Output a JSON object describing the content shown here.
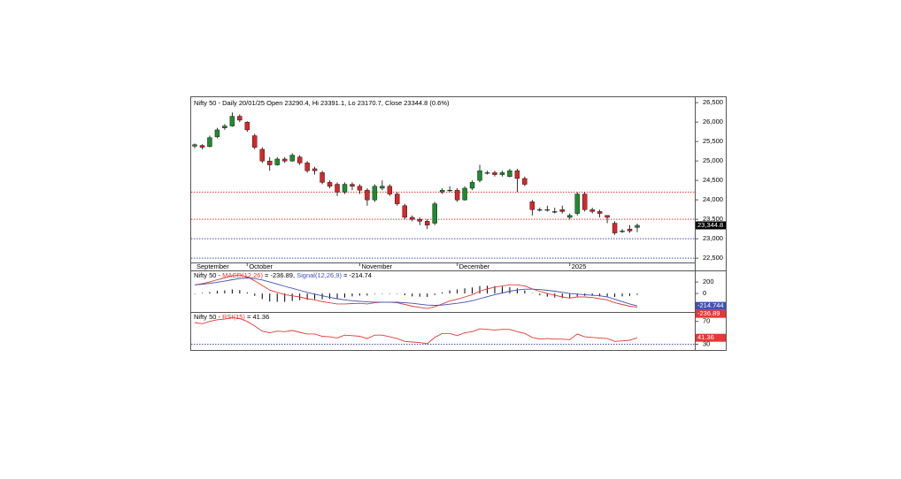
{
  "chart_data": [
    {
      "type": "candlestick",
      "title": "Nifty 50 - Daily 20/01/25 Open 23290.4, Hi 23391.1, Lo 23170.7, Close 23344.8 (0.6%)",
      "categories": [
        "September",
        null,
        null,
        null,
        null,
        null,
        null,
        "October",
        null,
        null,
        null,
        null,
        null,
        null,
        null,
        null,
        null,
        null,
        null,
        null,
        null,
        null,
        "November",
        null,
        null,
        null,
        null,
        null,
        null,
        null,
        null,
        null,
        null,
        null,
        null,
        "December",
        null,
        null,
        null,
        null,
        null,
        null,
        null,
        null,
        null,
        null,
        null,
        null,
        null,
        null,
        "2025",
        null,
        null,
        null,
        null,
        null,
        null,
        null,
        null,
        null
      ],
      "open": [
        25380,
        25400,
        25370,
        25620,
        25850,
        25900,
        26150,
        26000,
        25650,
        25300,
        25000,
        24900,
        25050,
        25000,
        25100,
        24950,
        24800,
        24700,
        24450,
        24400,
        24200,
        24400,
        24350,
        24250,
        24000,
        24300,
        24350,
        24150,
        23850,
        23550,
        23500,
        23450,
        23400,
        24200,
        24250,
        24250,
        24000,
        24300,
        24500,
        24700,
        24700,
        24650,
        24600,
        24750,
        24550,
        23950,
        23750,
        23750,
        23700,
        23750,
        23550,
        23650,
        24150,
        23750,
        23700,
        23600,
        23400,
        23200,
        23250,
        23290.4
      ],
      "high": [
        25450,
        25430,
        25650,
        25850,
        25950,
        26250,
        26200,
        26020,
        25700,
        25350,
        25100,
        25100,
        25100,
        25200,
        25150,
        25000,
        24850,
        24750,
        24500,
        24450,
        24450,
        24450,
        24400,
        24300,
        24400,
        24500,
        24400,
        24200,
        23900,
        23600,
        23550,
        23500,
        23950,
        24300,
        24350,
        24300,
        24350,
        24500,
        24900,
        24750,
        24750,
        24750,
        24800,
        24800,
        24600,
        24000,
        23800,
        23850,
        23800,
        23850,
        23650,
        24200,
        24200,
        23800,
        23750,
        23600,
        23450,
        23250,
        23350,
        23391.1
      ],
      "low": [
        25330,
        25300,
        25350,
        25590,
        25800,
        25880,
        26000,
        25750,
        25300,
        24950,
        24750,
        24880,
        24950,
        24980,
        24900,
        24700,
        24650,
        24400,
        24300,
        24100,
        24150,
        24250,
        24150,
        23850,
        23950,
        24250,
        24100,
        23850,
        23500,
        23450,
        23350,
        23250,
        23350,
        24150,
        24200,
        23950,
        23980,
        24250,
        24450,
        24650,
        24600,
        24600,
        24580,
        24200,
        24350,
        23600,
        23700,
        23700,
        23650,
        23650,
        23500,
        23600,
        23700,
        23650,
        23550,
        23400,
        23100,
        23150,
        23150,
        23170.7
      ],
      "close": [
        25420,
        25350,
        25600,
        25800,
        25900,
        26150,
        26050,
        25800,
        25350,
        25000,
        24900,
        25050,
        25000,
        25150,
        24950,
        24750,
        24750,
        24450,
        24350,
        24200,
        24400,
        24350,
        24250,
        24000,
        24350,
        24350,
        24150,
        23900,
        23550,
        23500,
        23450,
        23350,
        23900,
        24250,
        24250,
        24000,
        24300,
        24450,
        24750,
        24700,
        24650,
        24700,
        24750,
        24550,
        24400,
        23750,
        23750,
        23750,
        23700,
        23700,
        23600,
        24150,
        23750,
        23700,
        23650,
        23550,
        23150,
        23200,
        23200,
        23344.8
      ],
      "close_label": "23,344.8",
      "up_color": "#1e8c2e",
      "down_color": "#d62828",
      "hlines": [
        24200,
        23500,
        23000,
        22500
      ],
      "hline_colors": [
        "#e53935",
        "#e53935",
        "#3f51b5",
        "#3f51b5"
      ],
      "ylim": [
        22390,
        26640
      ],
      "yticks": [
        {
          "value": 26500,
          "label": "26,500"
        },
        {
          "value": 26000,
          "label": "26,000"
        },
        {
          "value": 25500,
          "label": "25,500"
        },
        {
          "value": 25000,
          "label": "25,000"
        },
        {
          "value": 24500,
          "label": "24,500"
        },
        {
          "value": 24000,
          "label": "24,000"
        },
        {
          "value": 23500,
          "label": "23,500"
        },
        {
          "value": 23000,
          "label": "23,000"
        },
        {
          "value": 22500,
          "label": "22,500"
        }
      ]
    },
    {
      "type": "macd",
      "title_parts": [
        {
          "text": "Nifty 50 - "
        },
        {
          "text": "MACD(12,26)",
          "color": "#e53935"
        },
        {
          "text": " = -236.89, "
        },
        {
          "text": "Signal(12,26,9)",
          "color": "#3f51b5"
        },
        {
          "text": " = -214.74"
        }
      ],
      "series": [
        {
          "name": "MACD",
          "color": "#e53935",
          "values": [
            150,
            170,
            200,
            240,
            270,
            310,
            320,
            290,
            220,
            140,
            60,
            20,
            -20,
            -40,
            -60,
            -90,
            -110,
            -140,
            -160,
            -180,
            -180,
            -175,
            -170,
            -180,
            -160,
            -150,
            -150,
            -160,
            -190,
            -220,
            -240,
            -260,
            -230,
            -180,
            -130,
            -100,
            -60,
            -20,
            40,
            80,
            110,
            130,
            150,
            150,
            130,
            80,
            40,
            0,
            -30,
            -60,
            -80,
            -60,
            -60,
            -70,
            -90,
            -110,
            -160,
            -190,
            -220,
            -236.89
          ]
        },
        {
          "name": "Signal",
          "color": "#3f51b5",
          "values": [
            150,
            160,
            175,
            195,
            215,
            240,
            260,
            270,
            260,
            235,
            200,
            165,
            125,
            90,
            55,
            20,
            -10,
            -40,
            -65,
            -90,
            -110,
            -125,
            -135,
            -145,
            -150,
            -150,
            -150,
            -152,
            -160,
            -170,
            -185,
            -200,
            -205,
            -200,
            -185,
            -170,
            -150,
            -125,
            -90,
            -55,
            -20,
            10,
            40,
            60,
            75,
            75,
            70,
            55,
            40,
            20,
            0,
            -10,
            -20,
            -30,
            -40,
            -60,
            -100,
            -140,
            -180,
            -214.744
          ]
        }
      ],
      "histogram": [
        0,
        10,
        25,
        45,
        55,
        70,
        60,
        20,
        -40,
        -95,
        -140,
        -145,
        -145,
        -130,
        -115,
        -110,
        -100,
        -100,
        -95,
        -90,
        -70,
        -50,
        -35,
        -35,
        -10,
        0,
        0,
        -8,
        -30,
        -50,
        -55,
        -60,
        -25,
        20,
        55,
        70,
        90,
        105,
        130,
        135,
        130,
        120,
        110,
        90,
        55,
        5,
        -30,
        -55,
        -70,
        -80,
        -80,
        -50,
        -40,
        -40,
        -50,
        -50,
        -60,
        -50,
        -40,
        -22.15
      ],
      "histogram_color": "#000000",
      "ylim": [
        -320,
        385
      ],
      "yticks": [
        0,
        200
      ]
    },
    {
      "type": "rsi",
      "title_parts": [
        {
          "text": "Nifty 50 - "
        },
        {
          "text": "RSI(15)",
          "color": "#e53935"
        },
        {
          "text": " = 41.36"
        }
      ],
      "series": [
        {
          "name": "RSI",
          "color": "#e53935",
          "values": [
            68,
            66,
            70,
            73,
            74,
            77,
            75,
            70,
            62,
            53,
            50,
            53,
            52,
            54,
            51,
            48,
            48,
            44,
            43,
            41,
            46,
            45,
            44,
            40,
            46,
            46,
            43,
            40,
            35,
            34,
            33,
            31,
            42,
            49,
            49,
            45,
            50,
            52,
            57,
            56,
            55,
            56,
            56,
            52,
            49,
            42,
            39,
            40,
            39,
            39,
            38,
            48,
            43,
            42,
            41,
            40,
            35,
            36,
            37,
            41.36
          ]
        }
      ],
      "hlines": [
        30
      ],
      "hline_colors": [
        "#3f51b5"
      ],
      "ylim": [
        20,
        85
      ],
      "yticks": [
        70,
        30
      ]
    }
  ]
}
